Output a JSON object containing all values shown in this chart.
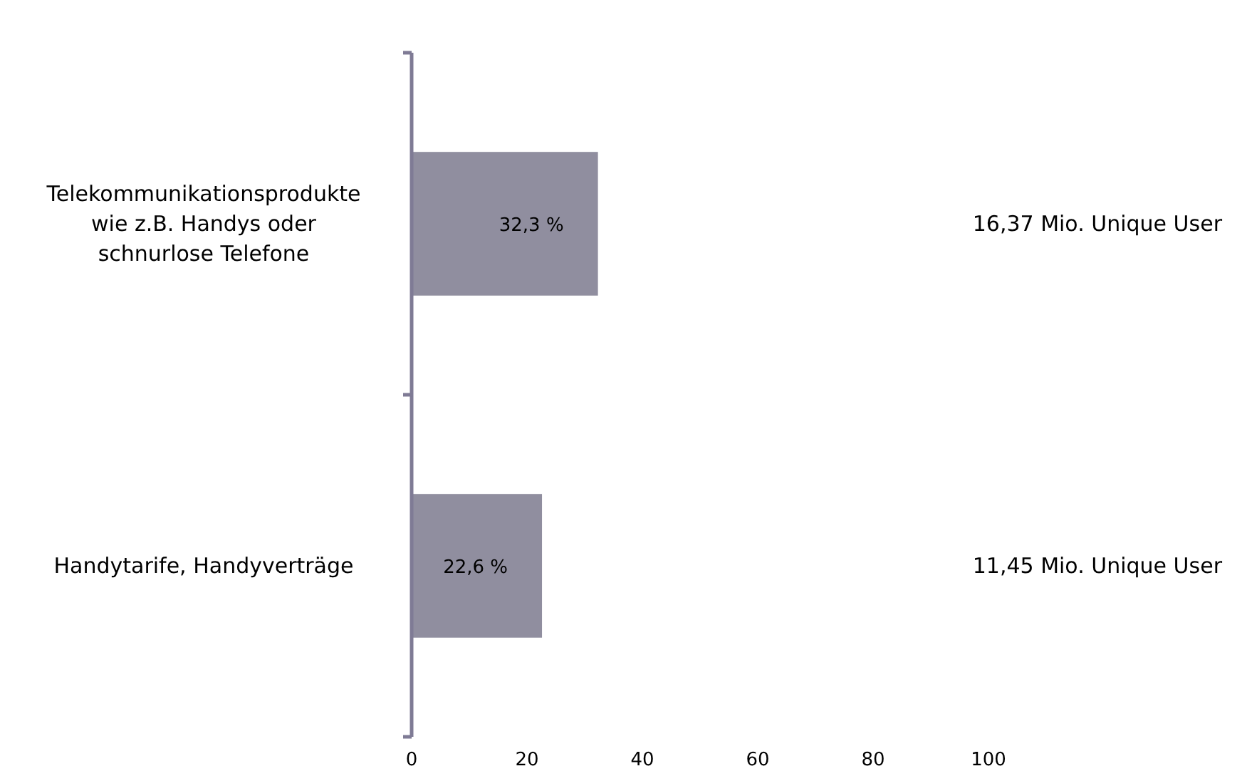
{
  "chart_data": {
    "type": "bar",
    "orientation": "horizontal",
    "categories": [
      "Telekommunikationsprodukte wie z.B. Handys oder schnurlose Telefone",
      "Handytarife, Handyverträge"
    ],
    "values": [
      32.3,
      22.6
    ],
    "value_labels": [
      "32,3 %",
      "22,6 %"
    ],
    "color": "#908e9f",
    "xlim": [
      0,
      100
    ],
    "xticks": [
      0,
      20,
      40,
      60,
      80,
      100
    ],
    "grid": false,
    "annotations": [
      "16,37 Mio. Unique User",
      "11,45 Mio. Unique User"
    ]
  }
}
